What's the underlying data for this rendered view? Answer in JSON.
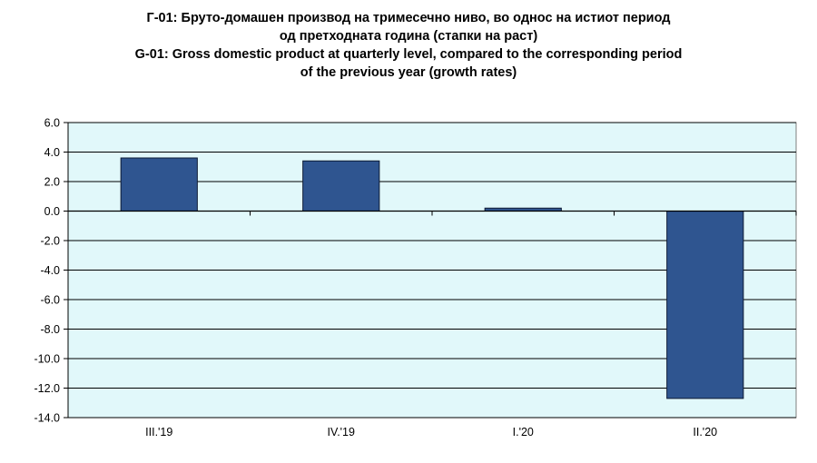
{
  "title": {
    "mk_line1": "Г-01: Бруто-домашен производ на тримесечно ниво, во однос на истиот период",
    "mk_line2": "од претходната година (стапки на раст)",
    "en_line1": "G-01: Gross domestic product at quarterly level, compared to the corresponding period",
    "en_line2": "of the previous year (growth rates)"
  },
  "colors": {
    "plot_background": "#e1f8fa",
    "bar_fill": "#2f5590",
    "bar_stroke": "#0d1a33",
    "gridline": "#000000"
  },
  "chart_data": {
    "type": "bar",
    "categories": [
      "III.'19",
      "IV.'19",
      "I.'20",
      "II.'20"
    ],
    "values": [
      3.6,
      3.4,
      0.2,
      -12.7
    ],
    "xlabel": "",
    "ylabel": "",
    "ylim": [
      -14.0,
      6.0
    ],
    "yticks": [
      6.0,
      4.0,
      2.0,
      0.0,
      -2.0,
      -4.0,
      -6.0,
      -8.0,
      -10.0,
      -12.0,
      -14.0
    ],
    "ytick_labels": [
      "6.0",
      "4.0",
      "2.0",
      "0.0",
      "-2.0",
      "-4.0",
      "-6.0",
      "-8.0",
      "-10.0",
      "-12.0",
      "-14.0"
    ],
    "grid": true,
    "legend": "none"
  }
}
